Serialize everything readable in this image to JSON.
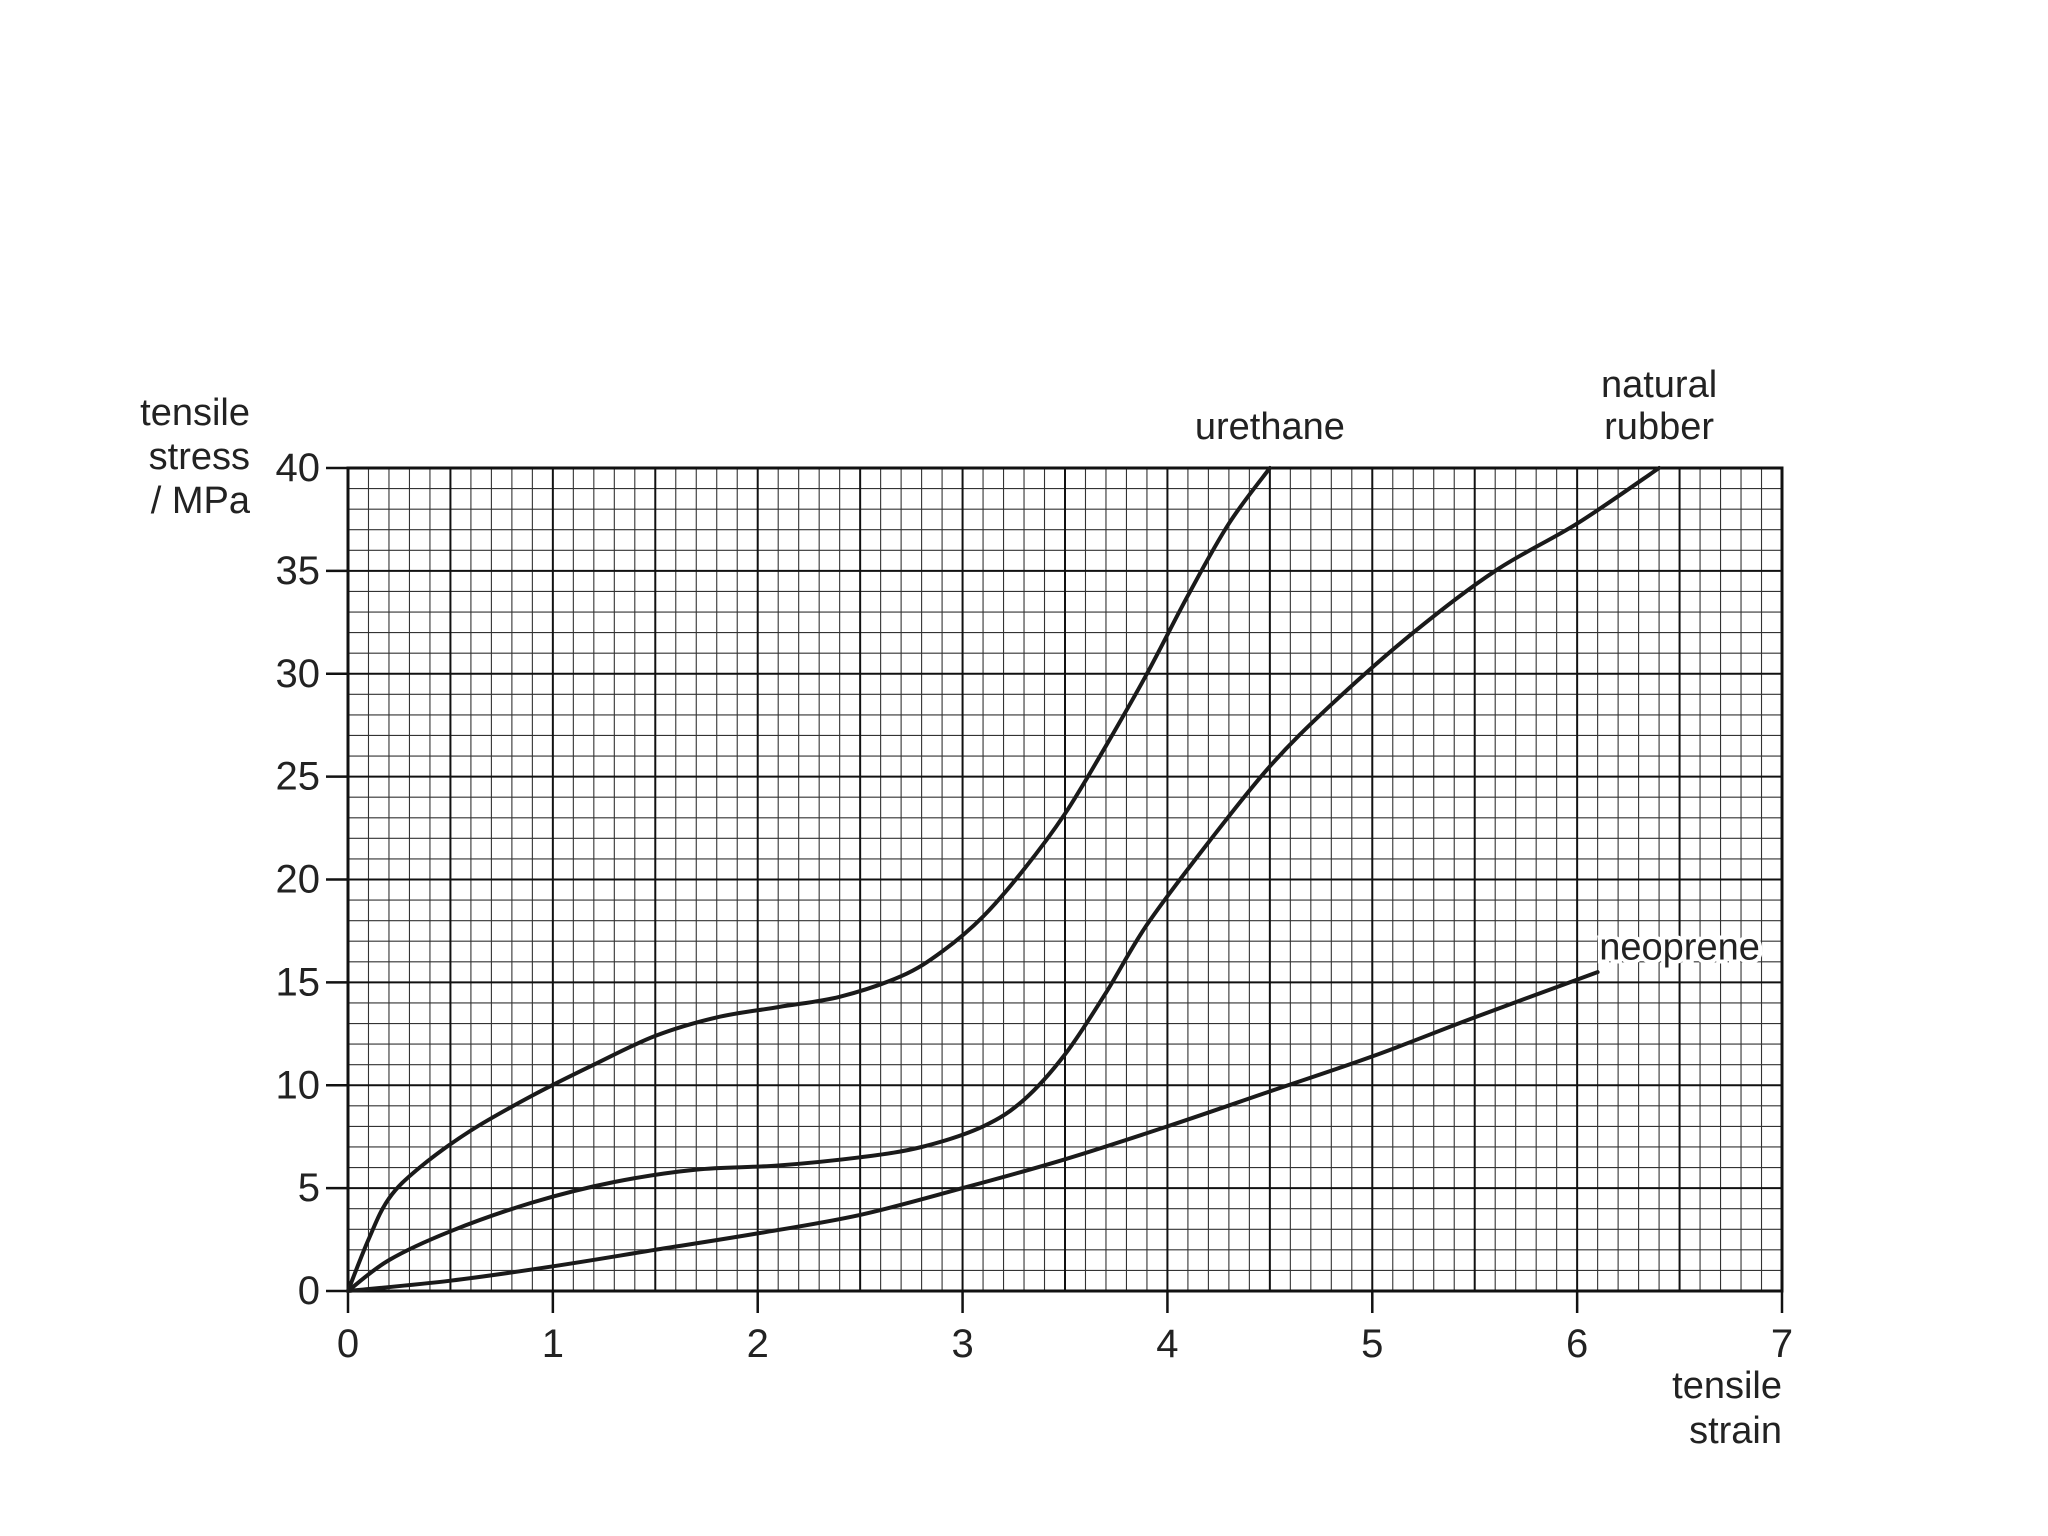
{
  "chart_data": {
    "type": "line",
    "title": "",
    "ylabel_lines": [
      "tensile",
      "stress",
      "/ MPa"
    ],
    "xlabel_lines": [
      "tensile",
      "strain"
    ],
    "xlim": [
      0,
      7
    ],
    "ylim": [
      0,
      40
    ],
    "x_ticks": [
      "0",
      "1",
      "2",
      "3",
      "4",
      "5",
      "6",
      "7"
    ],
    "y_ticks": [
      "0",
      "5",
      "10",
      "15",
      "20",
      "25",
      "30",
      "35",
      "40"
    ],
    "grid": true,
    "grid_minor_x": 0.1,
    "grid_minor_y": 1,
    "series": [
      {
        "name": "urethane",
        "label_lines": [
          "urethane"
        ],
        "label_anchor": [
          4.5,
          42
        ],
        "points": [
          [
            0,
            0
          ],
          [
            0.1,
            2.5
          ],
          [
            0.2,
            4.5
          ],
          [
            0.35,
            6
          ],
          [
            0.6,
            7.8
          ],
          [
            0.9,
            9.5
          ],
          [
            1.2,
            11
          ],
          [
            1.5,
            12.4
          ],
          [
            1.8,
            13.3
          ],
          [
            2.1,
            13.8
          ],
          [
            2.4,
            14.3
          ],
          [
            2.7,
            15.3
          ],
          [
            2.9,
            16.5
          ],
          [
            3.1,
            18.2
          ],
          [
            3.3,
            20.5
          ],
          [
            3.5,
            23.2
          ],
          [
            3.7,
            26.5
          ],
          [
            3.9,
            30
          ],
          [
            4.1,
            33.8
          ],
          [
            4.3,
            37.3
          ],
          [
            4.5,
            40
          ]
        ]
      },
      {
        "name": "natural rubber",
        "label_lines": [
          "natural",
          "rubber"
        ],
        "label_anchor": [
          6.4,
          42
        ],
        "points": [
          [
            0,
            0
          ],
          [
            0.2,
            1.5
          ],
          [
            0.5,
            2.9
          ],
          [
            0.9,
            4.3
          ],
          [
            1.3,
            5.3
          ],
          [
            1.7,
            5.9
          ],
          [
            2.1,
            6.1
          ],
          [
            2.5,
            6.5
          ],
          [
            2.8,
            7
          ],
          [
            3.1,
            8
          ],
          [
            3.3,
            9.3
          ],
          [
            3.5,
            11.5
          ],
          [
            3.7,
            14.5
          ],
          [
            3.9,
            17.8
          ],
          [
            4.2,
            21.8
          ],
          [
            4.5,
            25.5
          ],
          [
            4.8,
            28.5
          ],
          [
            5.2,
            32
          ],
          [
            5.6,
            35
          ],
          [
            6.0,
            37.3
          ],
          [
            6.4,
            40
          ]
        ]
      },
      {
        "name": "neoprene",
        "label_lines": [
          "neoprene"
        ],
        "label_anchor": [
          6.5,
          16.7
        ],
        "points": [
          [
            0,
            0
          ],
          [
            0.5,
            0.5
          ],
          [
            1,
            1.2
          ],
          [
            1.5,
            2
          ],
          [
            2,
            2.8
          ],
          [
            2.5,
            3.7
          ],
          [
            3,
            5
          ],
          [
            3.5,
            6.4
          ],
          [
            4,
            8
          ],
          [
            4.5,
            9.7
          ],
          [
            5,
            11.4
          ],
          [
            5.5,
            13.3
          ],
          [
            6.1,
            15.5
          ]
        ]
      }
    ]
  }
}
